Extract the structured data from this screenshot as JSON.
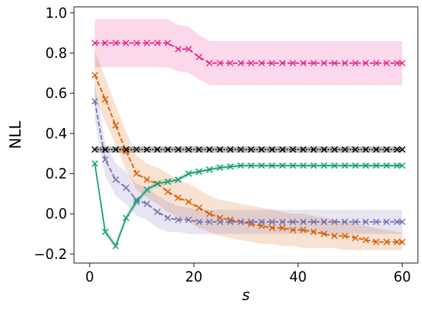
{
  "chart_data": {
    "type": "line",
    "title": "",
    "xlabel": "s",
    "ylabel": "NLL",
    "xlim": [
      -3,
      63
    ],
    "ylim": [
      -0.245,
      1.03
    ],
    "xticks": [
      0,
      20,
      40,
      60
    ],
    "yticks": [
      -0.2,
      0.0,
      0.2,
      0.4,
      0.6,
      0.8,
      1.0
    ],
    "xtick_labels": [
      "0",
      "20",
      "40",
      "60"
    ],
    "ytick_labels": [
      "−0.2",
      "0.0",
      "0.2",
      "0.4",
      "0.6",
      "0.8",
      "1.0"
    ],
    "grid": false,
    "legend": null,
    "series": [
      {
        "name": "pink",
        "color": "#e7298a",
        "linestyle": "dashed",
        "marker": "x",
        "x": [
          1,
          3,
          5,
          7,
          9,
          11,
          13,
          15,
          17,
          19,
          21,
          23,
          25,
          27,
          29,
          31,
          33,
          35,
          37,
          39,
          41,
          43,
          45,
          47,
          49,
          51,
          53,
          55,
          57,
          59,
          60
        ],
        "y": [
          0.85,
          0.85,
          0.85,
          0.85,
          0.85,
          0.85,
          0.85,
          0.85,
          0.82,
          0.82,
          0.78,
          0.75,
          0.75,
          0.75,
          0.75,
          0.75,
          0.75,
          0.75,
          0.75,
          0.75,
          0.75,
          0.75,
          0.75,
          0.75,
          0.75,
          0.75,
          0.75,
          0.75,
          0.75,
          0.75,
          0.75
        ],
        "lower": [
          0.73,
          0.73,
          0.73,
          0.73,
          0.73,
          0.73,
          0.73,
          0.73,
          0.71,
          0.7,
          0.67,
          0.64,
          0.64,
          0.64,
          0.64,
          0.64,
          0.64,
          0.64,
          0.64,
          0.64,
          0.64,
          0.64,
          0.64,
          0.64,
          0.64,
          0.64,
          0.64,
          0.64,
          0.64,
          0.64,
          0.64
        ],
        "upper": [
          0.97,
          0.97,
          0.97,
          0.97,
          0.97,
          0.97,
          0.97,
          0.97,
          0.94,
          0.93,
          0.89,
          0.86,
          0.86,
          0.86,
          0.86,
          0.86,
          0.86,
          0.86,
          0.86,
          0.86,
          0.86,
          0.86,
          0.86,
          0.86,
          0.86,
          0.86,
          0.86,
          0.86,
          0.86,
          0.86,
          0.86
        ]
      },
      {
        "name": "orange",
        "color": "#d95f02",
        "linestyle": "dashed",
        "marker": "x",
        "x": [
          1,
          3,
          5,
          7,
          9,
          11,
          13,
          15,
          17,
          19,
          21,
          23,
          25,
          27,
          29,
          31,
          33,
          35,
          37,
          39,
          41,
          43,
          45,
          47,
          49,
          51,
          53,
          55,
          57,
          59,
          60
        ],
        "y": [
          0.69,
          0.57,
          0.44,
          0.31,
          0.2,
          0.17,
          0.15,
          0.11,
          0.08,
          0.06,
          0.03,
          0.0,
          -0.02,
          -0.03,
          -0.04,
          -0.05,
          -0.06,
          -0.07,
          -0.07,
          -0.08,
          -0.08,
          -0.09,
          -0.1,
          -0.11,
          -0.11,
          -0.12,
          -0.13,
          -0.14,
          -0.14,
          -0.14,
          -0.14
        ],
        "lower": [
          0.57,
          0.46,
          0.34,
          0.22,
          0.12,
          0.08,
          0.05,
          0.01,
          -0.02,
          -0.04,
          -0.07,
          -0.09,
          -0.11,
          -0.12,
          -0.13,
          -0.14,
          -0.15,
          -0.15,
          -0.16,
          -0.16,
          -0.17,
          -0.17,
          -0.17,
          -0.17,
          -0.18,
          -0.18,
          -0.18,
          -0.18,
          -0.18,
          -0.18,
          -0.18
        ],
        "upper": [
          0.81,
          0.68,
          0.54,
          0.41,
          0.29,
          0.25,
          0.23,
          0.2,
          0.17,
          0.15,
          0.12,
          0.09,
          0.07,
          0.06,
          0.05,
          0.04,
          0.03,
          0.02,
          0.01,
          0.0,
          0.0,
          -0.01,
          -0.02,
          -0.03,
          -0.04,
          -0.05,
          -0.06,
          -0.07,
          -0.08,
          -0.09,
          -0.09
        ]
      },
      {
        "name": "purple",
        "color": "#7570b3",
        "linestyle": "dashed",
        "marker": "x",
        "x": [
          1,
          3,
          5,
          7,
          9,
          11,
          13,
          15,
          17,
          19,
          21,
          23,
          25,
          27,
          29,
          31,
          33,
          35,
          37,
          39,
          41,
          43,
          45,
          47,
          49,
          51,
          53,
          55,
          57,
          59,
          60
        ],
        "y": [
          0.56,
          0.27,
          0.17,
          0.13,
          0.07,
          0.05,
          0.01,
          -0.02,
          -0.03,
          -0.03,
          -0.04,
          -0.04,
          -0.04,
          -0.04,
          -0.04,
          -0.04,
          -0.04,
          -0.04,
          -0.04,
          -0.04,
          -0.04,
          -0.04,
          -0.04,
          -0.04,
          -0.04,
          -0.04,
          -0.04,
          -0.04,
          -0.04,
          -0.04,
          -0.04
        ],
        "lower": [
          0.47,
          0.19,
          0.09,
          0.05,
          -0.01,
          -0.03,
          -0.07,
          -0.09,
          -0.09,
          -0.1,
          -0.1,
          -0.1,
          -0.1,
          -0.1,
          -0.1,
          -0.1,
          -0.1,
          -0.1,
          -0.1,
          -0.1,
          -0.1,
          -0.1,
          -0.1,
          -0.1,
          -0.1,
          -0.1,
          -0.1,
          -0.1,
          -0.1,
          -0.1,
          -0.1
        ],
        "upper": [
          0.65,
          0.35,
          0.25,
          0.21,
          0.15,
          0.13,
          0.09,
          0.06,
          0.04,
          0.03,
          0.02,
          0.02,
          0.02,
          0.02,
          0.02,
          0.02,
          0.02,
          0.02,
          0.02,
          0.02,
          0.02,
          0.02,
          0.02,
          0.02,
          0.02,
          0.02,
          0.02,
          0.02,
          0.02,
          0.02,
          0.02
        ]
      },
      {
        "name": "black",
        "color": "#000000",
        "linestyle": "dotted",
        "marker": "x",
        "x": [
          1,
          3,
          5,
          7,
          9,
          11,
          13,
          15,
          17,
          19,
          21,
          23,
          25,
          27,
          29,
          31,
          33,
          35,
          37,
          39,
          41,
          43,
          45,
          47,
          49,
          51,
          53,
          55,
          57,
          59,
          60
        ],
        "y": [
          0.32,
          0.32,
          0.32,
          0.32,
          0.32,
          0.32,
          0.32,
          0.32,
          0.32,
          0.32,
          0.32,
          0.32,
          0.32,
          0.32,
          0.32,
          0.32,
          0.32,
          0.32,
          0.32,
          0.32,
          0.32,
          0.32,
          0.32,
          0.32,
          0.32,
          0.32,
          0.32,
          0.32,
          0.32,
          0.32,
          0.32
        ],
        "lower": [
          0.305,
          0.305,
          0.305,
          0.305,
          0.305,
          0.305,
          0.305,
          0.305,
          0.305,
          0.305,
          0.305,
          0.305,
          0.305,
          0.305,
          0.305,
          0.305,
          0.305,
          0.305,
          0.305,
          0.305,
          0.305,
          0.305,
          0.305,
          0.305,
          0.305,
          0.305,
          0.305,
          0.305,
          0.305,
          0.305,
          0.305
        ],
        "upper": [
          0.335,
          0.335,
          0.335,
          0.335,
          0.335,
          0.335,
          0.335,
          0.335,
          0.335,
          0.335,
          0.335,
          0.335,
          0.335,
          0.335,
          0.335,
          0.335,
          0.335,
          0.335,
          0.335,
          0.335,
          0.335,
          0.335,
          0.335,
          0.335,
          0.335,
          0.335,
          0.335,
          0.335,
          0.335,
          0.335,
          0.335
        ]
      },
      {
        "name": "green",
        "color": "#1b9e77",
        "linestyle": "solid",
        "marker": "x",
        "x": [
          1,
          3,
          5,
          7,
          9,
          11,
          13,
          15,
          17,
          19,
          21,
          23,
          25,
          27,
          29,
          31,
          33,
          35,
          37,
          39,
          41,
          43,
          45,
          47,
          49,
          51,
          53,
          55,
          57,
          59,
          60
        ],
        "y": [
          0.25,
          -0.09,
          -0.16,
          -0.02,
          0.06,
          0.12,
          0.15,
          0.16,
          0.17,
          0.2,
          0.21,
          0.22,
          0.23,
          0.235,
          0.24,
          0.24,
          0.24,
          0.24,
          0.24,
          0.24,
          0.24,
          0.24,
          0.24,
          0.24,
          0.24,
          0.24,
          0.24,
          0.24,
          0.24,
          0.24,
          0.24
        ],
        "lower": [
          0.23,
          -0.11,
          -0.18,
          -0.04,
          0.04,
          0.105,
          0.135,
          0.145,
          0.155,
          0.185,
          0.195,
          0.205,
          0.215,
          0.222,
          0.228,
          0.228,
          0.228,
          0.228,
          0.228,
          0.228,
          0.228,
          0.228,
          0.228,
          0.228,
          0.228,
          0.228,
          0.228,
          0.228,
          0.228,
          0.228,
          0.228
        ],
        "upper": [
          0.27,
          -0.07,
          -0.14,
          0.0,
          0.08,
          0.135,
          0.165,
          0.175,
          0.185,
          0.215,
          0.225,
          0.235,
          0.245,
          0.248,
          0.252,
          0.252,
          0.252,
          0.252,
          0.252,
          0.252,
          0.252,
          0.252,
          0.252,
          0.252,
          0.252,
          0.252,
          0.252,
          0.252,
          0.252,
          0.252,
          0.252
        ]
      }
    ]
  }
}
